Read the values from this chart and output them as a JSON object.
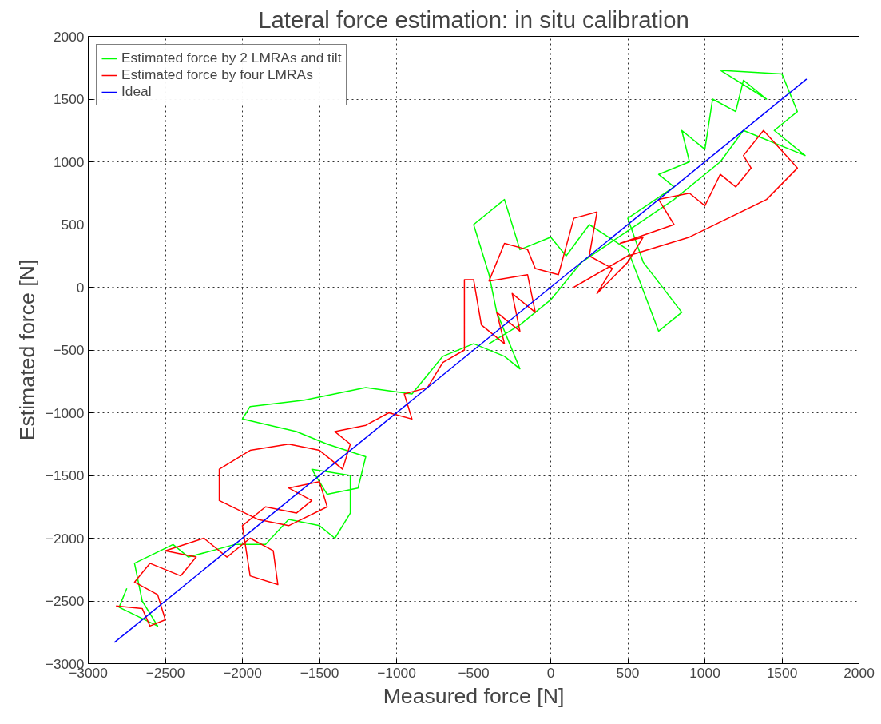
{
  "chart_data": {
    "type": "line",
    "title": "Lateral force estimation: in situ calibration",
    "xlabel": "Measured force [N]",
    "ylabel": "Estimated force [N]",
    "xlim": [
      -3000,
      2000
    ],
    "ylim": [
      -3000,
      2000
    ],
    "xticks": [
      -3000,
      -2500,
      -2000,
      -1500,
      -1000,
      -500,
      0,
      500,
      1000,
      1500,
      2000
    ],
    "yticks": [
      -3000,
      -2500,
      -2000,
      -1500,
      -1000,
      -500,
      0,
      500,
      1000,
      1500,
      2000
    ],
    "grid": true,
    "legend": "top left",
    "series": [
      {
        "name": "Estimated force by 2 LMRAs and tilt",
        "color": "#00ff00",
        "x": [
          -2750,
          -2800,
          -2550,
          -2650,
          -2700,
          -2450,
          -2350,
          -2050,
          -1850,
          -1700,
          -1500,
          -1400,
          -1300,
          -1300,
          -1550,
          -1450,
          -1250,
          -1200,
          -1450,
          -1650,
          -2000,
          -1950,
          -1600,
          -1200,
          -900,
          -700,
          -500,
          -300,
          -200,
          -350,
          -400,
          -500,
          -300,
          -200,
          0,
          100,
          250,
          500,
          700,
          850,
          600,
          500,
          800,
          700,
          900,
          850,
          1000,
          1050,
          1200,
          1250,
          1400,
          1100,
          1500,
          1600,
          1450,
          1650,
          1250,
          1100,
          800,
          500,
          200,
          0,
          -200,
          -400
        ],
        "values": [
          -2400,
          -2550,
          -2700,
          -2500,
          -2200,
          -2050,
          -2150,
          -2050,
          -2050,
          -1850,
          -1900,
          -2000,
          -1800,
          -1500,
          -1450,
          -1650,
          -1600,
          -1350,
          -1250,
          -1150,
          -1050,
          -950,
          -900,
          -800,
          -850,
          -550,
          -450,
          -550,
          -650,
          -200,
          100,
          500,
          700,
          300,
          400,
          250,
          500,
          300,
          -350,
          -200,
          200,
          550,
          800,
          900,
          1000,
          1250,
          1100,
          1500,
          1400,
          1650,
          1500,
          1730,
          1700,
          1400,
          1250,
          1050,
          1250,
          1000,
          700,
          450,
          200,
          -100,
          -300,
          -450
        ]
      },
      {
        "name": "Estimated force by four LMRAs",
        "color": "#ff0000",
        "x": [
          -2820,
          -2650,
          -2600,
          -2500,
          -2550,
          -2700,
          -2600,
          -2400,
          -2300,
          -2500,
          -2250,
          -2100,
          -1950,
          -1800,
          -1770,
          -1950,
          -2000,
          -1850,
          -1650,
          -1550,
          -1700,
          -1500,
          -1450,
          -1700,
          -1900,
          -2150,
          -2150,
          -1950,
          -1700,
          -1500,
          -1350,
          -1300,
          -1400,
          -1200,
          -1050,
          -900,
          -950,
          -800,
          -700,
          -560,
          -560,
          -560,
          -500,
          -450,
          -300,
          -350,
          -200,
          -250,
          -100,
          -150,
          -400,
          -300,
          -150,
          -100,
          50,
          150,
          300,
          250,
          400,
          300,
          500,
          600,
          450,
          800,
          700,
          900,
          1000,
          1100,
          1200,
          1300,
          1250,
          1380,
          1600,
          1400,
          900,
          500,
          150
        ],
        "values": [
          -2540,
          -2560,
          -2700,
          -2650,
          -2450,
          -2350,
          -2200,
          -2300,
          -2150,
          -2100,
          -2000,
          -2150,
          -2000,
          -2100,
          -2370,
          -2300,
          -1900,
          -1750,
          -1800,
          -1700,
          -1600,
          -1550,
          -1750,
          -1900,
          -1850,
          -1700,
          -1450,
          -1300,
          -1250,
          -1300,
          -1450,
          -1250,
          -1150,
          -1100,
          -1000,
          -1050,
          -850,
          -800,
          -600,
          -500,
          -450,
          60,
          60,
          -300,
          -450,
          -200,
          -350,
          -50,
          -200,
          100,
          50,
          350,
          300,
          150,
          100,
          550,
          600,
          250,
          150,
          -50,
          200,
          400,
          350,
          500,
          700,
          750,
          650,
          900,
          800,
          950,
          1050,
          1250,
          950,
          700,
          400,
          250,
          0
        ]
      },
      {
        "name": "Ideal",
        "color": "#0000ff",
        "x": [
          -2830,
          1660
        ],
        "values": [
          -2830,
          1660
        ]
      }
    ]
  }
}
